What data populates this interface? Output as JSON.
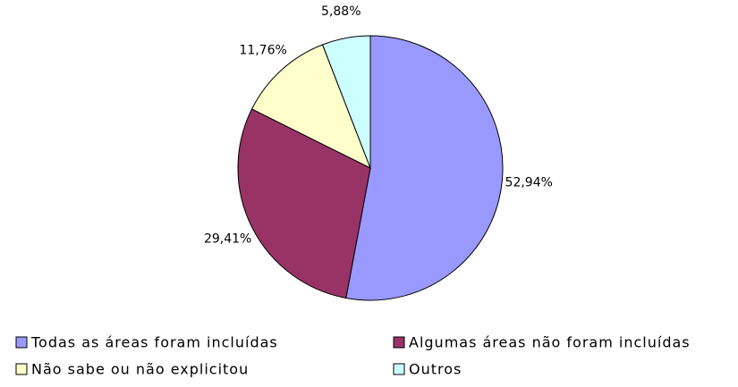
{
  "chart_data": {
    "type": "pie",
    "categories": [
      "Todas as áreas foram incluídas",
      "Algumas áreas não foram incluídas",
      "Não sabe ou não explicitou",
      "Outros"
    ],
    "values": [
      52.94,
      29.41,
      11.76,
      5.88
    ],
    "value_labels": [
      "52,94%",
      "29,41%",
      "11,76%",
      "5,88%"
    ],
    "colors": [
      "#9999ff",
      "#993366",
      "#ffffcc",
      "#ccffff"
    ],
    "legend": "bottom"
  }
}
